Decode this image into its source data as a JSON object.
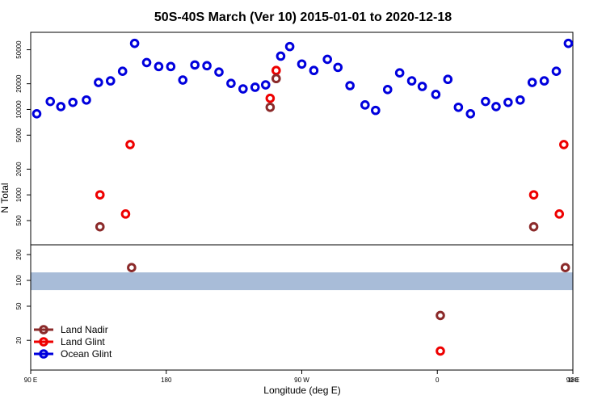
{
  "chart_data": [
    {
      "type": "scatter",
      "title": "50S-40S March (Ver 10)   2015-01-01 to 2020-12-18",
      "y_label": "N Total",
      "log_y": true,
      "xlim": [
        90,
        450
      ],
      "ylim": [
        260,
        80000
      ],
      "yticks": [
        500,
        1000,
        2000,
        5000,
        10000,
        20000,
        50000
      ],
      "series": [
        {
          "color": "#0000dd",
          "x": [
            94,
            103,
            110,
            118,
            127,
            135,
            143,
            151,
            159,
            167,
            175,
            183,
            191,
            199,
            207,
            215,
            223,
            231,
            239,
            246,
            256,
            262,
            270,
            278,
            287,
            294,
            302,
            312,
            319,
            327,
            335,
            343,
            350,
            359,
            367,
            374,
            382,
            392,
            399,
            407,
            415,
            423,
            431,
            439,
            447
          ],
          "values": [
            8900,
            12400,
            10800,
            12100,
            12900,
            20700,
            21600,
            28000,
            59400,
            35400,
            31800,
            31800,
            22100,
            33200,
            32500,
            27400,
            20200,
            17400,
            18200,
            19400,
            42100,
            54500,
            34000,
            28600,
            38600,
            31100,
            19000,
            11300,
            9750,
            17100,
            26800,
            21600,
            18600,
            15000,
            22500,
            10600,
            8900,
            12400,
            10800,
            12100,
            12900,
            20700,
            21600,
            28000,
            59400
          ]
        },
        {
          "color": "#ee0000",
          "x": [
            136,
            153,
            156,
            249,
            253,
            424,
            441,
            444
          ],
          "values": [
            1000,
            597,
            3880,
            13500,
            28600,
            1000,
            597,
            3880
          ]
        },
        {
          "color": "#8b2a2a",
          "x": [
            136,
            249,
            253,
            424
          ],
          "values": [
            423,
            10600,
            23000,
            423
          ]
        }
      ]
    },
    {
      "type": "scatter",
      "x_label": "Longitude (deg E)",
      "log_y": true,
      "xlim": [
        90,
        450
      ],
      "ylim": [
        9,
        260
      ],
      "yticks": [
        20,
        50,
        100,
        200
      ],
      "xticks": [
        {
          "value": 90,
          "label": "90 E"
        },
        {
          "value": 180,
          "label": "180"
        },
        {
          "value": 270,
          "label": "90 W"
        },
        {
          "value": 360,
          "label": "0"
        },
        {
          "value": 450,
          "label": "90 E"
        },
        {
          "value": 540,
          "label": "180"
        }
      ],
      "band": [
        77,
        124
      ],
      "band_color": "#a8bcd8",
      "legend": "bottom-left",
      "series": [
        {
          "name": "Land Nadir",
          "color": "#8b2a2a",
          "x": [
            157,
            362,
            445
          ],
          "values": [
            141,
            39,
            141
          ]
        },
        {
          "name": "Land Glint",
          "color": "#ee0000",
          "x": [
            362
          ],
          "values": [
            15
          ]
        },
        {
          "name": "Ocean Glint",
          "color": "#0000dd",
          "x": [],
          "values": []
        }
      ]
    }
  ]
}
